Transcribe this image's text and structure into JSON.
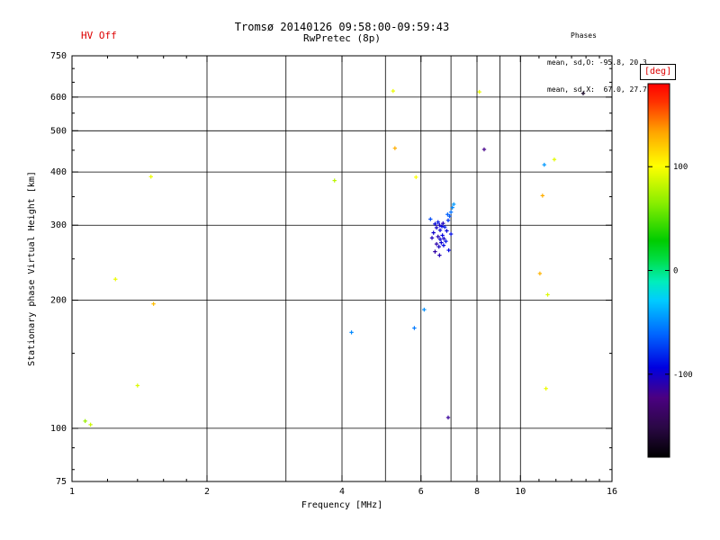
{
  "header": {
    "hv_status": "HV Off",
    "title": "Tromsø 20140126 09:58:00-09:59:43",
    "subtitle": "RwPretec (8p)",
    "phases_label": "Phases",
    "phases_mean_o": "mean, sd,O: -95.8, 20.3",
    "phases_mean_x": "mean, sd,X:  67.0, 27.7"
  },
  "chart_data": {
    "type": "scatter",
    "title": "Tromsø 20140126 09:58:00-09:59:43",
    "subtitle": "RwPretec (8p)",
    "xlabel": "Frequency [MHz]",
    "ylabel": "Stationary phase Virtual Height [km]",
    "x_scale": "log",
    "y_scale": "log",
    "xlim": [
      1,
      16
    ],
    "ylim": [
      75,
      750
    ],
    "x_ticks_labeled": [
      1,
      2,
      4,
      6,
      8,
      10,
      16
    ],
    "x_gridlines": [
      2,
      3,
      4,
      5,
      6,
      7,
      8,
      9,
      10
    ],
    "x_minor_ticks": [
      1.2,
      1.4,
      1.6,
      1.8,
      11,
      12,
      13,
      14,
      15
    ],
    "y_ticks_labeled": [
      75,
      100,
      200,
      300,
      400,
      500,
      600,
      750
    ],
    "y_gridlines": [
      100,
      200,
      300,
      400,
      500,
      600
    ],
    "y_minor_ticks": [
      80,
      90,
      150,
      250,
      350,
      450,
      550,
      650,
      700
    ],
    "grid": true,
    "colorbar": {
      "label": "[deg]",
      "ticks": [
        100,
        0,
        -100
      ],
      "range": [
        -180,
        180
      ],
      "stops": [
        [
          0.0,
          "#000000"
        ],
        [
          0.08,
          "#2a0845"
        ],
        [
          0.16,
          "#4b0082"
        ],
        [
          0.24,
          "#0000e0"
        ],
        [
          0.33,
          "#0066ff"
        ],
        [
          0.42,
          "#00ccff"
        ],
        [
          0.47,
          "#00eebb"
        ],
        [
          0.53,
          "#00dd44"
        ],
        [
          0.58,
          "#00cc00"
        ],
        [
          0.68,
          "#88ee00"
        ],
        [
          0.78,
          "#ffff00"
        ],
        [
          0.87,
          "#ffa500"
        ],
        [
          0.95,
          "#ff3300"
        ],
        [
          1.0,
          "#ff0000"
        ]
      ]
    },
    "points_format": [
      "frequency_MHz",
      "virtual_height_km",
      "phase_deg"
    ],
    "points": [
      [
        1.07,
        104,
        70
      ],
      [
        1.1,
        102,
        85
      ],
      [
        1.25,
        224,
        95
      ],
      [
        1.4,
        126,
        90
      ],
      [
        1.52,
        196,
        125
      ],
      [
        1.5,
        390,
        95
      ],
      [
        3.85,
        382,
        80
      ],
      [
        4.2,
        168,
        -50
      ],
      [
        5.2,
        620,
        95
      ],
      [
        5.25,
        455,
        130
      ],
      [
        5.85,
        389,
        100
      ],
      [
        5.8,
        172,
        -55
      ],
      [
        6.1,
        190,
        -48
      ],
      [
        6.9,
        106,
        -115
      ],
      [
        8.1,
        617,
        95
      ],
      [
        8.3,
        452,
        -120
      ],
      [
        11.05,
        231,
        128
      ],
      [
        11.3,
        416,
        -45
      ],
      [
        11.9,
        428,
        92
      ],
      [
        11.2,
        352,
        130
      ],
      [
        11.4,
        124,
        95
      ],
      [
        11.5,
        206,
        90
      ],
      [
        13.8,
        612,
        -165
      ],
      [
        6.45,
        302,
        -95
      ],
      [
        6.5,
        296,
        -100
      ],
      [
        6.55,
        305,
        -88
      ],
      [
        6.6,
        300,
        -102
      ],
      [
        6.62,
        292,
        -96
      ],
      [
        6.68,
        298,
        -92
      ],
      [
        6.72,
        303,
        -104
      ],
      [
        6.78,
        297,
        -85
      ],
      [
        6.55,
        282,
        -108
      ],
      [
        6.62,
        278,
        -98
      ],
      [
        6.7,
        284,
        -94
      ],
      [
        6.75,
        279,
        -101
      ],
      [
        6.5,
        271,
        -110
      ],
      [
        6.58,
        267,
        -103
      ],
      [
        6.66,
        273,
        -97
      ],
      [
        6.74,
        269,
        -92
      ],
      [
        6.82,
        275,
        -88
      ],
      [
        6.85,
        291,
        -95
      ],
      [
        6.9,
        308,
        -78
      ],
      [
        6.95,
        315,
        -66
      ],
      [
        7.0,
        322,
        -58
      ],
      [
        7.05,
        330,
        -50
      ],
      [
        7.1,
        336,
        -45
      ],
      [
        6.88,
        318,
        -62
      ],
      [
        6.4,
        288,
        -99
      ],
      [
        6.35,
        280,
        -105
      ],
      [
        6.45,
        260,
        -112
      ],
      [
        6.6,
        255,
        -107
      ],
      [
        6.92,
        262,
        -93
      ],
      [
        7.0,
        286,
        -90
      ],
      [
        6.3,
        310,
        -70
      ]
    ]
  }
}
